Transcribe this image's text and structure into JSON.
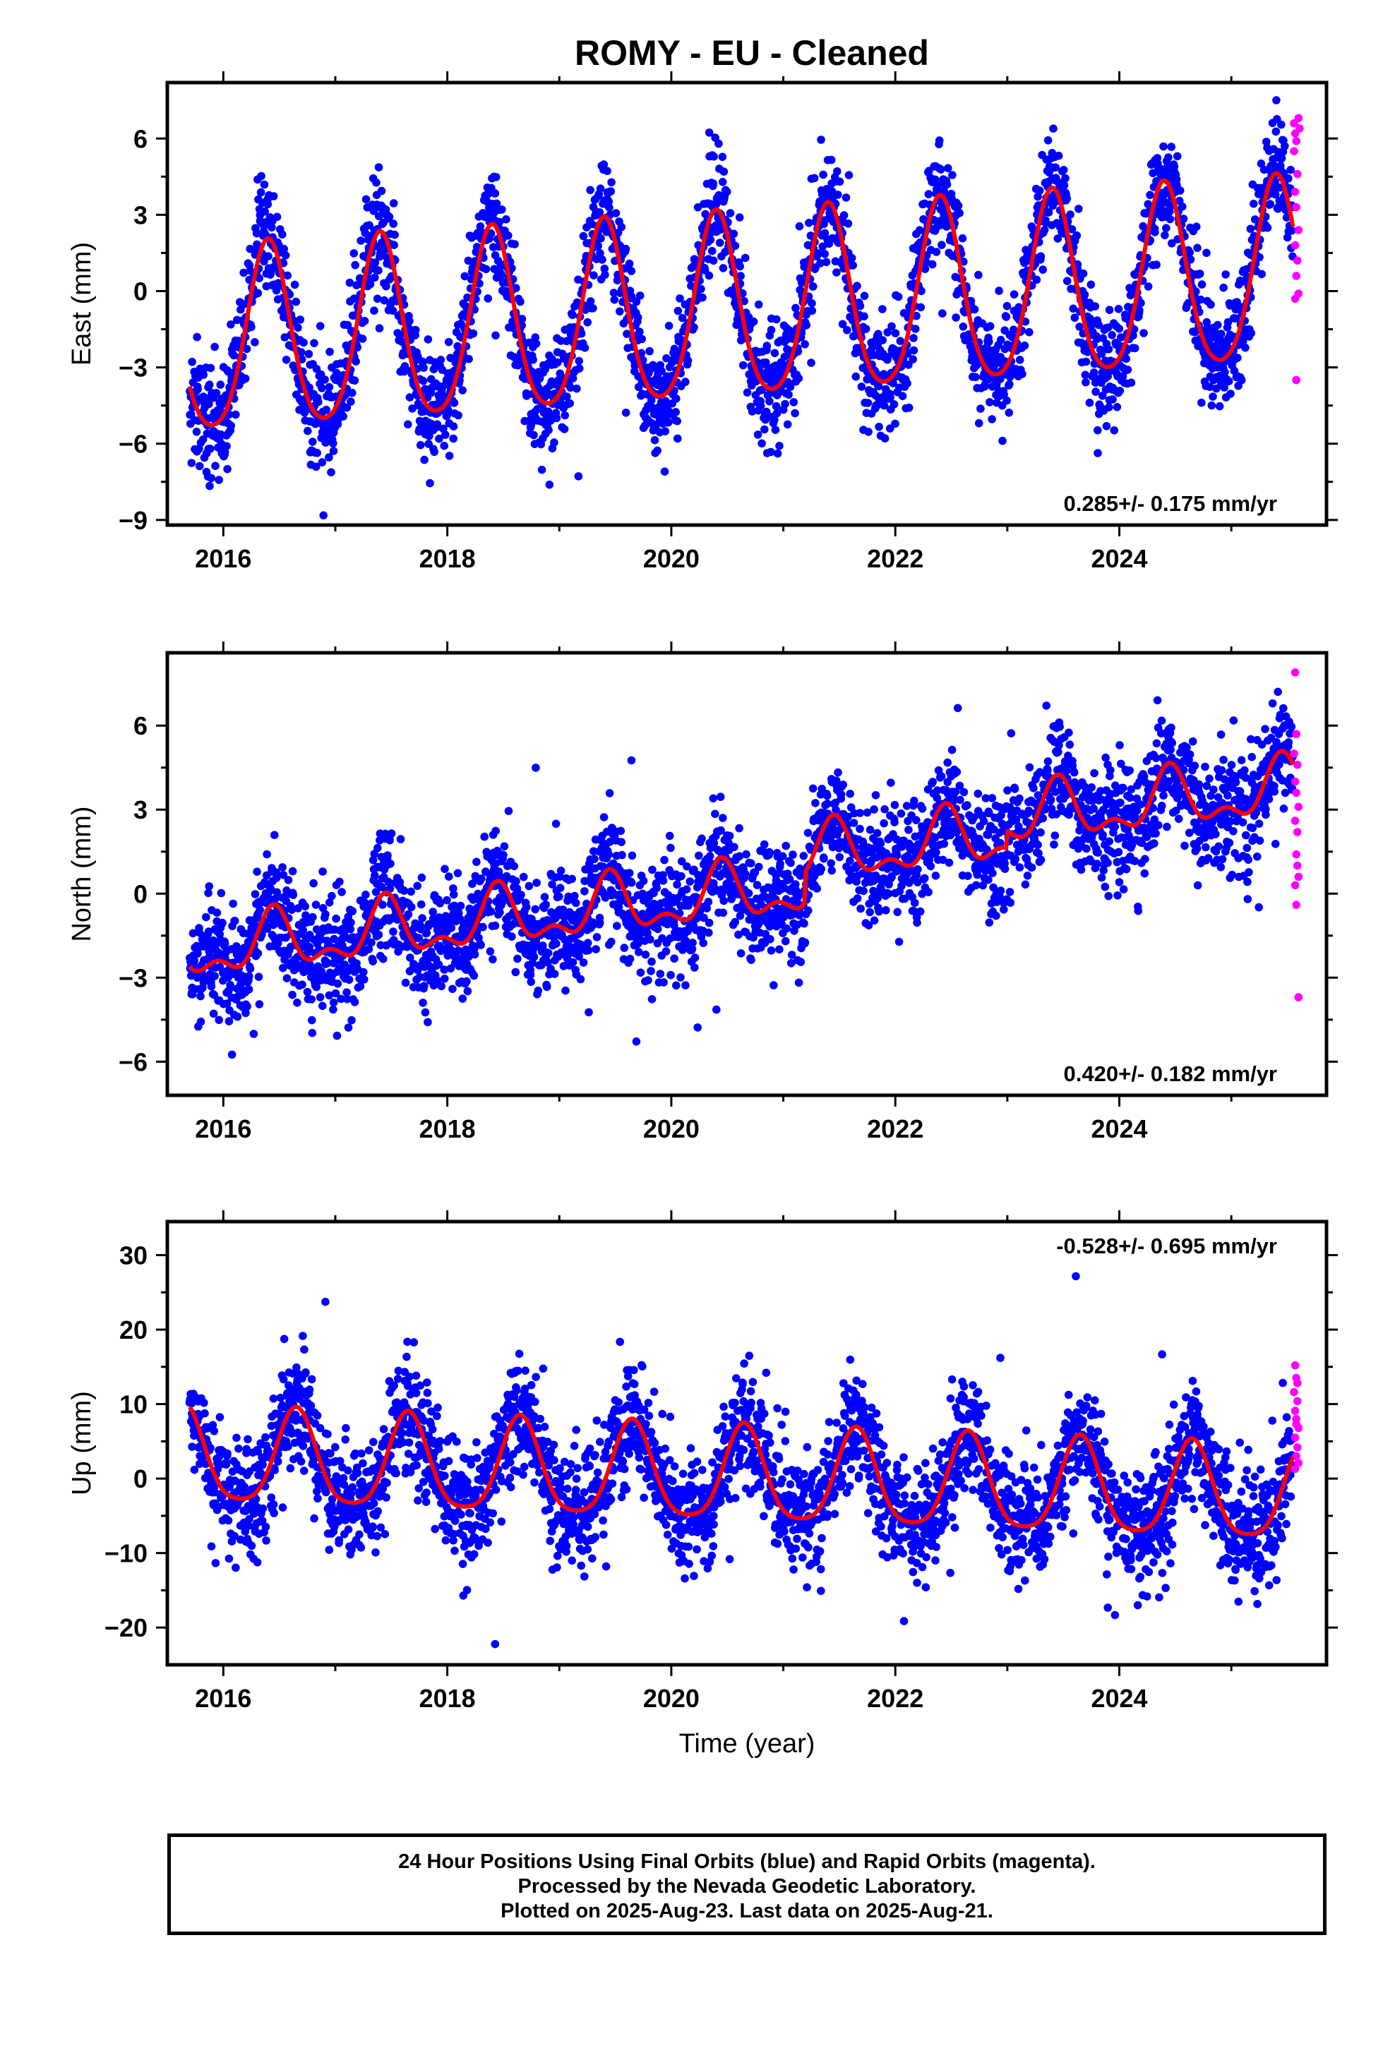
{
  "title": "ROMY  - EU - Cleaned",
  "xlabel": "Time (year)",
  "footer": {
    "line1": "24 Hour Positions Using Final Orbits (blue) and Rapid Orbits (magenta).",
    "line2": "Processed by the Nevada Geodetic Laboratory.",
    "line3": "Plotted on 2025-Aug-23. Last data on 2025-Aug-21."
  },
  "colors": {
    "final": "#0000ff",
    "rapid": "#ff00ff",
    "model": "#ff0000",
    "frame": "#000000"
  },
  "chart_data": [
    {
      "type": "scatter",
      "ylabel": "East (mm)",
      "xlim": [
        2015.5,
        2025.85
      ],
      "ylim": [
        -9.2,
        8.2
      ],
      "xticks": [
        2016,
        2018,
        2020,
        2022,
        2024
      ],
      "xtick_labels": [
        "2016",
        "2018",
        "2020",
        "2022",
        "2024"
      ],
      "yticks": [
        -9,
        -6,
        -3,
        0,
        3,
        6
      ],
      "ytick_labels": [
        "−9",
        "−6",
        "−3",
        "0",
        "3",
        "6"
      ],
      "rate_label": "0.285+/- 0.175 mm/yr",
      "rate_position": "bottom-right",
      "data_range": [
        2015.7,
        2025.55
      ],
      "series": [
        {
          "name": "Final Orbits",
          "color": "#0000ff",
          "marker": "dot"
        },
        {
          "name": "Rapid Orbits",
          "color": "#ff00ff",
          "marker": "dot"
        },
        {
          "name": "Model",
          "color": "#ff0000",
          "marker": "line"
        }
      ],
      "model": {
        "t0": 2020.7,
        "offset": -0.8,
        "rate": 0.285,
        "annual_amplitude": 3.6,
        "annual_peak": 2020.4,
        "semiannual_amplitude": 0.5,
        "semiannual_peak": 2020.4,
        "amplitude_growth_per_year": 0.0
      },
      "scatter_sd": 1.1,
      "rapid_points": [
        [
          2025.56,
          6.6
        ],
        [
          2025.57,
          6.2
        ],
        [
          2025.58,
          5.9
        ],
        [
          2025.56,
          5.5
        ],
        [
          2025.59,
          4.6
        ],
        [
          2025.57,
          3.9
        ],
        [
          2025.58,
          3.3
        ],
        [
          2025.6,
          2.4
        ],
        [
          2025.57,
          1.8
        ],
        [
          2025.59,
          1.2
        ],
        [
          2025.58,
          0.6
        ],
        [
          2025.6,
          -0.1
        ],
        [
          2025.57,
          -0.3
        ],
        [
          2025.58,
          -3.5
        ],
        [
          2025.6,
          6.8
        ],
        [
          2025.61,
          6.4
        ]
      ]
    },
    {
      "type": "scatter",
      "ylabel": "North (mm)",
      "xlim": [
        2015.5,
        2025.85
      ],
      "ylim": [
        -7.2,
        8.6
      ],
      "xticks": [
        2016,
        2018,
        2020,
        2022,
        2024
      ],
      "xtick_labels": [
        "2016",
        "2018",
        "2020",
        "2022",
        "2024"
      ],
      "yticks": [
        -6,
        -3,
        0,
        3,
        6
      ],
      "ytick_labels": [
        "−6",
        "−3",
        "0",
        "3",
        "6"
      ],
      "rate_label": "0.420+/- 0.182 mm/yr",
      "rate_position": "bottom-right",
      "data_range": [
        2015.7,
        2025.55
      ],
      "model": {
        "t0": 2020.7,
        "offset": 0.0,
        "rate": 0.42,
        "annual_amplitude": 0.9,
        "annual_peak": 2020.45,
        "semiannual_amplitude": 0.5,
        "semiannual_peak": 2020.45,
        "amplitude_growth_per_year": 0.0
      },
      "steps": [
        [
          2021.2,
          1.1
        ],
        [
          2023.0,
          0.6
        ]
      ],
      "scatter_sd": 1.0,
      "rapid_points": [
        [
          2025.57,
          7.9
        ],
        [
          2025.58,
          5.7
        ],
        [
          2025.56,
          5.0
        ],
        [
          2025.59,
          4.6
        ],
        [
          2025.57,
          4.0
        ],
        [
          2025.58,
          3.6
        ],
        [
          2025.6,
          3.1
        ],
        [
          2025.57,
          2.6
        ],
        [
          2025.59,
          2.2
        ],
        [
          2025.58,
          1.4
        ],
        [
          2025.6,
          0.6
        ],
        [
          2025.57,
          0.3
        ],
        [
          2025.58,
          -0.4
        ],
        [
          2025.6,
          -3.7
        ],
        [
          2025.59,
          1.0
        ]
      ]
    },
    {
      "type": "scatter",
      "ylabel": "Up (mm)",
      "xlim": [
        2015.5,
        2025.85
      ],
      "ylim": [
        -25,
        34.5
      ],
      "xticks": [
        2016,
        2018,
        2020,
        2022,
        2024
      ],
      "xtick_labels": [
        "2016",
        "2018",
        "2020",
        "2022",
        "2024"
      ],
      "yticks": [
        -20,
        -10,
        0,
        10,
        20,
        30
      ],
      "ytick_labels": [
        "−20",
        "−10",
        "0",
        "10",
        "20",
        "30"
      ],
      "rate_label": "-0.528+/- 0.695 mm/yr",
      "rate_position": "top-right",
      "data_range": [
        2015.7,
        2025.55
      ],
      "model": {
        "t0": 2020.7,
        "offset": 0.0,
        "rate": -0.528,
        "annual_amplitude": 6.3,
        "annual_peak": 2020.65,
        "semiannual_amplitude": 1.2,
        "semiannual_peak": 2020.65,
        "amplitude_growth_per_year": 0.0
      },
      "scatter_sd": 3.8,
      "rapid_points": [
        [
          2025.57,
          15.2
        ],
        [
          2025.58,
          13.5
        ],
        [
          2025.56,
          11.6
        ],
        [
          2025.59,
          10.4
        ],
        [
          2025.57,
          9.1
        ],
        [
          2025.58,
          8.0
        ],
        [
          2025.6,
          6.8
        ],
        [
          2025.57,
          5.5
        ],
        [
          2025.59,
          4.2
        ],
        [
          2025.58,
          3.0
        ],
        [
          2025.6,
          2.1
        ],
        [
          2025.57,
          1.3
        ],
        [
          2025.58,
          7.3
        ],
        [
          2025.59,
          12.8
        ]
      ]
    }
  ]
}
